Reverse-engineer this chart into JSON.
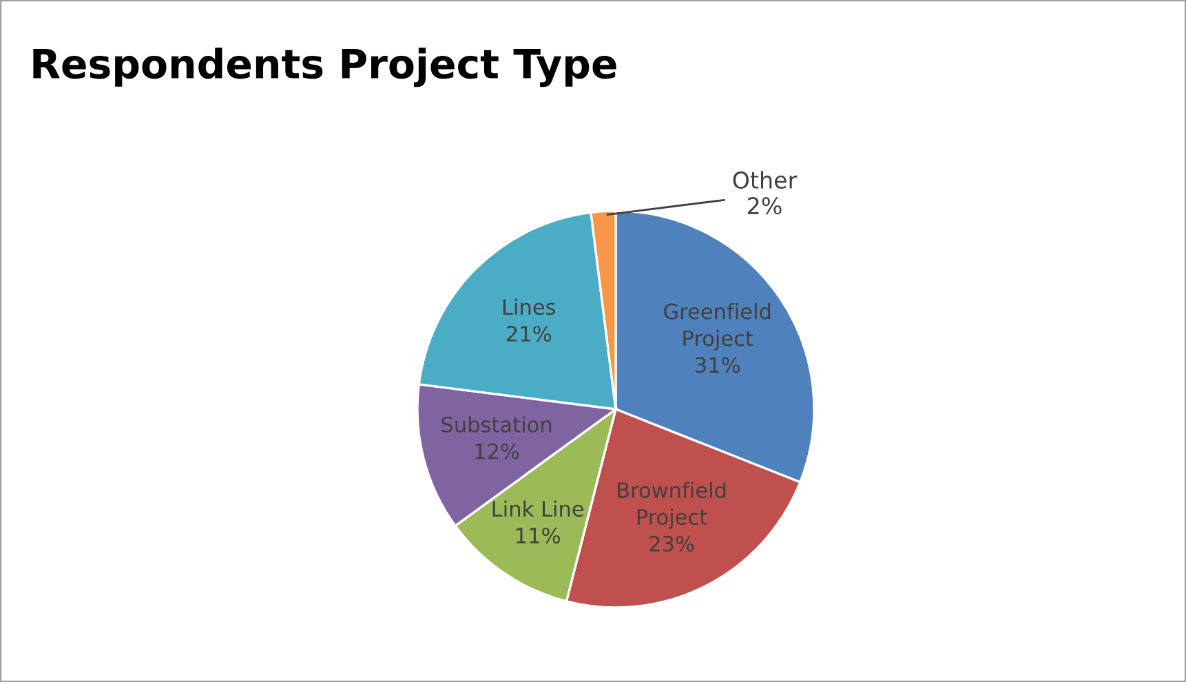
{
  "chart_data": {
    "type": "pie",
    "title": "Respondents Project Type",
    "categories": [
      "Greenfield\nProject",
      "Brownfield\nProject",
      "Link Line",
      "Substation",
      "Lines",
      "Other"
    ],
    "values": [
      31,
      23,
      11,
      12,
      21,
      2
    ],
    "colors": [
      "#4f81bd",
      "#c0504d",
      "#9bbb59",
      "#8064a2",
      "#4bacc6",
      "#f79646"
    ],
    "value_labels": [
      "31%",
      "23%",
      "11%",
      "12%",
      "21%",
      "2%"
    ]
  }
}
